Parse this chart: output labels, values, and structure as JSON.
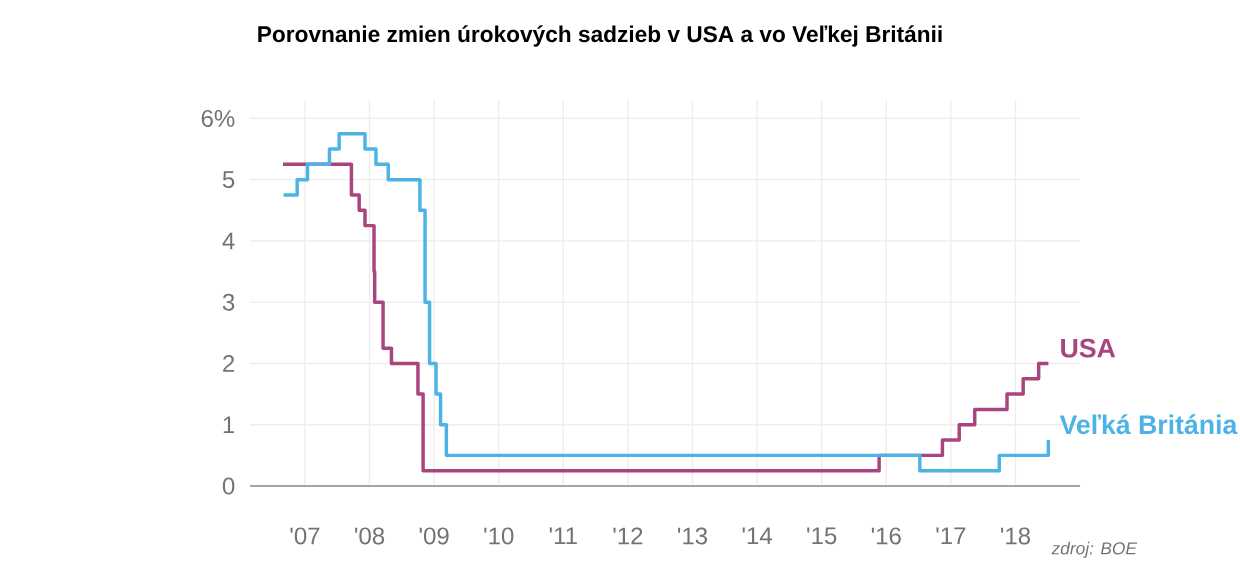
{
  "chart_data": {
    "type": "step",
    "title": "Porovnanie zmien úrokových sadzieb v USA a vo Veľkej Británii",
    "xlim": [
      2006.15,
      2019.0
    ],
    "ylim": [
      0,
      6.3
    ],
    "xticks": [
      {
        "value": 2007,
        "label": "'07"
      },
      {
        "value": 2008,
        "label": "'08"
      },
      {
        "value": 2009,
        "label": "'09"
      },
      {
        "value": 2010,
        "label": "'10"
      },
      {
        "value": 2011,
        "label": "'11"
      },
      {
        "value": 2012,
        "label": "'12"
      },
      {
        "value": 2013,
        "label": "'13"
      },
      {
        "value": 2014,
        "label": "'14"
      },
      {
        "value": 2015,
        "label": "'15"
      },
      {
        "value": 2016,
        "label": "'16"
      },
      {
        "value": 2017,
        "label": "'17"
      },
      {
        "value": 2018,
        "label": "'18"
      }
    ],
    "yticks": [
      0,
      1,
      2,
      3,
      4,
      5,
      {
        "value": 6,
        "label": "6%"
      }
    ],
    "grid": true,
    "series": [
      {
        "name": "USA",
        "color": "#a8457f",
        "x": [
          2006.66,
          2007.72,
          2007.84,
          2007.93,
          2008.07,
          2008.08,
          2008.21,
          2008.34,
          2008.75,
          2008.83,
          2015.89,
          2016.87,
          2017.13,
          2017.37,
          2017.87,
          2018.12,
          2018.36,
          2018.51
        ],
        "values": [
          5.25,
          4.75,
          4.5,
          4.25,
          3.5,
          3.0,
          2.25,
          2.0,
          1.5,
          0.25,
          0.5,
          0.75,
          1.0,
          1.25,
          1.5,
          1.75,
          2.0,
          2.0
        ]
      },
      {
        "name": "Veľká Británia",
        "color": "#4db3e6",
        "x": [
          2006.67,
          2006.88,
          2007.04,
          2007.38,
          2007.53,
          2007.93,
          2008.1,
          2008.29,
          2008.78,
          2008.86,
          2008.93,
          2009.03,
          2009.1,
          2009.19,
          2016.52,
          2017.75,
          2018.51
        ],
        "values": [
          4.75,
          5.0,
          5.25,
          5.5,
          5.75,
          5.5,
          5.25,
          5.0,
          4.5,
          3.0,
          2.0,
          1.5,
          1.0,
          0.5,
          0.25,
          0.5,
          0.75
        ]
      }
    ],
    "annotations": [
      "zdroj: BOE"
    ]
  }
}
